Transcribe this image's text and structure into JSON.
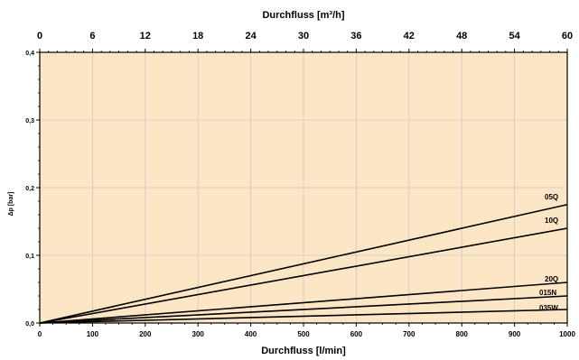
{
  "chart_data": {
    "type": "line",
    "xlabel": "Durchfluss [l/min]",
    "x2label": "Durchfluss [m³/h]",
    "ylabel": "Δp [bar]",
    "xlim": [
      0,
      1000
    ],
    "x2lim": [
      0,
      60
    ],
    "ylim": [
      0,
      0.4
    ],
    "x_ticks": [
      "0",
      "100",
      "200",
      "300",
      "400",
      "500",
      "600",
      "700",
      "800",
      "900",
      "1000"
    ],
    "x2_ticks": [
      "0",
      "6",
      "12",
      "18",
      "24",
      "30",
      "36",
      "42",
      "48",
      "54",
      "60"
    ],
    "y_ticks": [
      "0,0",
      "0,1",
      "0,2",
      "0,3",
      "0,4"
    ],
    "grid": true,
    "plot_background": "#fde6c5",
    "line_color": "#000000",
    "series": [
      {
        "name": "05Q",
        "x": [
          0,
          1000
        ],
        "y": [
          0,
          0.175
        ]
      },
      {
        "name": "10Q",
        "x": [
          0,
          1000
        ],
        "y": [
          0,
          0.14
        ]
      },
      {
        "name": "20Q",
        "x": [
          0,
          1000
        ],
        "y": [
          0,
          0.06
        ]
      },
      {
        "name": "015N",
        "x": [
          0,
          1000
        ],
        "y": [
          0,
          0.04
        ]
      },
      {
        "name": "035W",
        "x": [
          0,
          1000
        ],
        "y": [
          0,
          0.02
        ]
      }
    ]
  }
}
